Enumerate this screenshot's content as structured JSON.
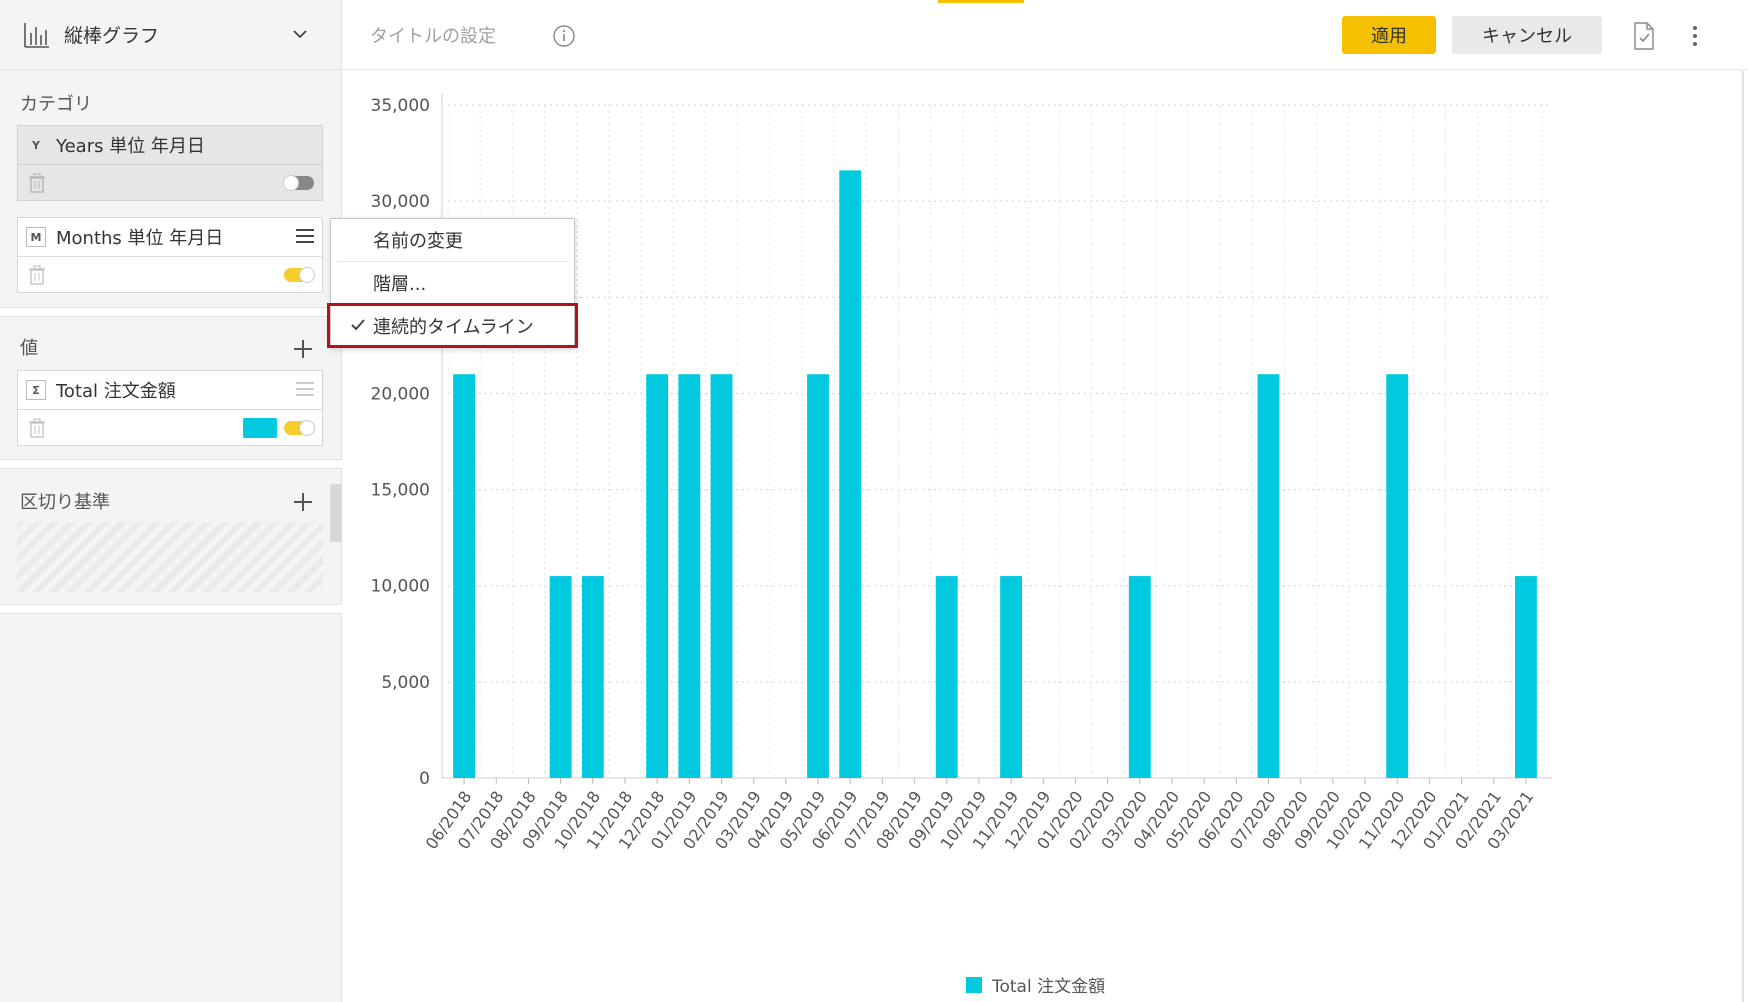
{
  "sidebar": {
    "chart_type_label": "縦棒グラフ",
    "category_title": "カテゴリ",
    "fields": [
      {
        "badge": "Y",
        "name": "Years 単位 年月日",
        "toggle": "off"
      },
      {
        "badge": "M",
        "name": "Months 単位 年月日",
        "toggle": "on"
      }
    ],
    "values_title": "値",
    "value_field": {
      "badge": "Σ",
      "name": "Total 注文金額",
      "color": "#00c9e0",
      "toggle": "on"
    },
    "breakdown_title": "区切り基準"
  },
  "toolbar": {
    "title_placeholder": "タイトルの設定",
    "apply_label": "適用",
    "cancel_label": "キャンセル"
  },
  "context_menu": {
    "items": [
      {
        "label": "名前の変更",
        "checked": false
      },
      {
        "label": "階層...",
        "checked": false
      },
      {
        "label": "連続的タイムライン",
        "checked": true
      }
    ]
  },
  "chart_data": {
    "type": "bar",
    "categories": [
      "06/2018",
      "07/2018",
      "08/2018",
      "09/2018",
      "10/2018",
      "11/2018",
      "12/2018",
      "01/2019",
      "02/2019",
      "03/2019",
      "04/2019",
      "05/2019",
      "06/2019",
      "07/2019",
      "08/2019",
      "09/2019",
      "10/2019",
      "11/2019",
      "12/2019",
      "01/2020",
      "02/2020",
      "03/2020",
      "04/2020",
      "05/2020",
      "06/2020",
      "07/2020",
      "08/2020",
      "09/2020",
      "10/2020",
      "11/2020",
      "12/2020",
      "01/2021",
      "02/2021",
      "03/2021"
    ],
    "series": [
      {
        "name": "Total 注文金額",
        "color": "#00c9e0",
        "values": [
          21000,
          0,
          0,
          10500,
          10500,
          0,
          21000,
          21000,
          21000,
          0,
          0,
          21000,
          31600,
          0,
          0,
          10500,
          0,
          10500,
          0,
          0,
          0,
          10500,
          0,
          0,
          0,
          21000,
          0,
          0,
          0,
          21000,
          0,
          0,
          0,
          10500
        ]
      }
    ],
    "y_ticks": [
      "0",
      "5,000",
      "10,000",
      "15,000",
      "20,000",
      "25,000",
      "30,000",
      "35,000"
    ],
    "ylim": [
      0,
      35000
    ],
    "grid": true,
    "legend_position": "bottom"
  }
}
